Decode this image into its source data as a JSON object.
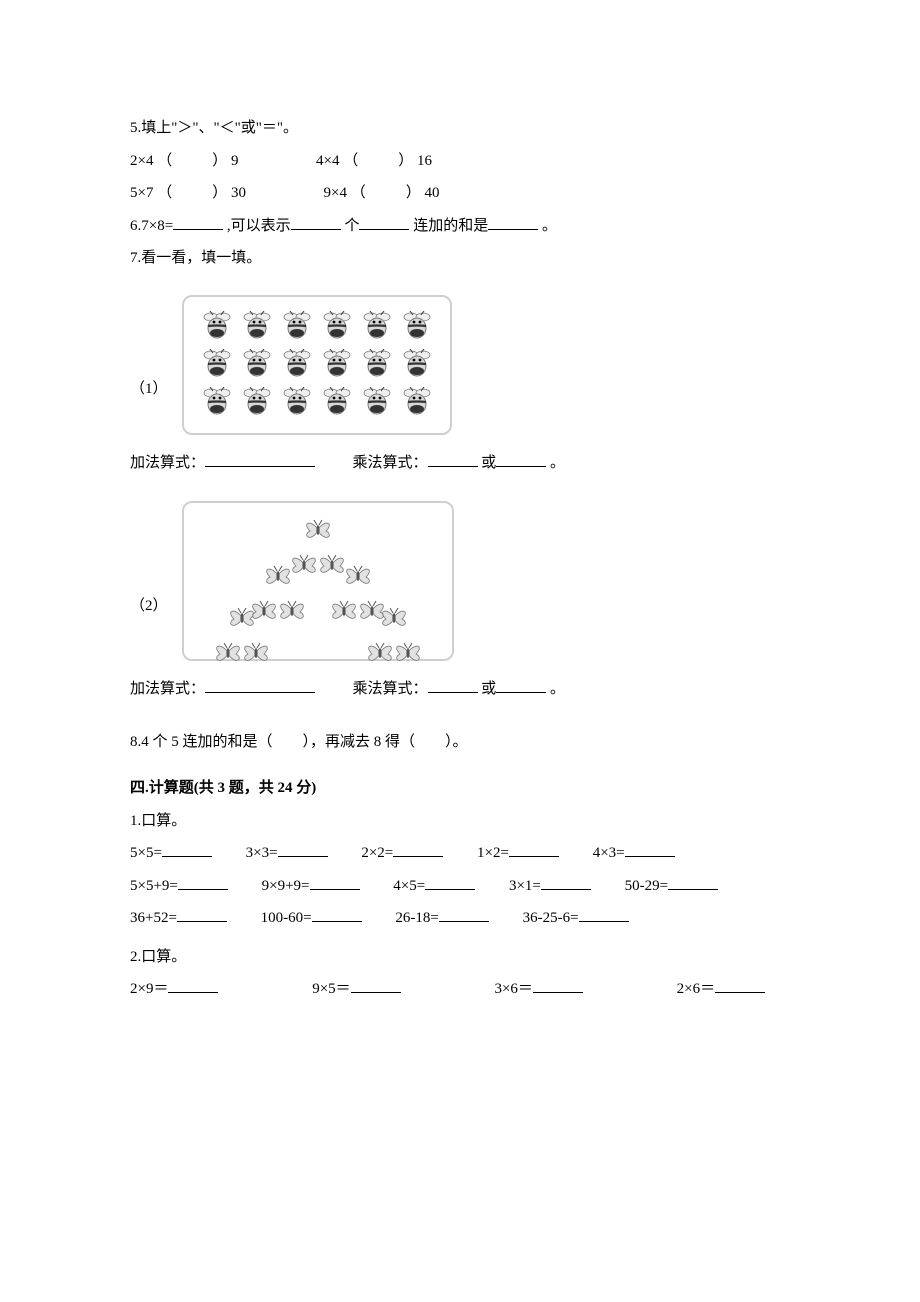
{
  "q5": {
    "prompt": "5.填上\"＞\"、\"＜\"或\"＝\"。",
    "row1a": "2×4",
    "row1a_rhs": "9",
    "row1b": "4×4",
    "row1b_rhs": "16",
    "row2a": "5×7",
    "row2a_rhs": "30",
    "row2b": "9×4",
    "row2b_rhs": "40"
  },
  "q6": {
    "text_a": "6.7×8=",
    "text_b": ",可以表示",
    "text_c": "个",
    "text_d": "连加的和是",
    "text_e": "。"
  },
  "q7": {
    "prompt": "7.看一看，填一填。",
    "label1": "（1）",
    "label2": "（2）",
    "add_label": "加法算式：",
    "mul_label": "乘法算式：",
    "or": "或",
    "dot": "。",
    "bee_rows": 3,
    "bee_cols": 6
  },
  "q8": {
    "text": "8.4 个 5 连加的和是（　　），再减去 8 得（　　）。"
  },
  "sec4": {
    "head": "四.计算题(共 3 题，共 24 分)",
    "q1": "1.口算。",
    "r1": [
      "5×5=",
      "3×3=",
      "2×2=",
      "1×2=",
      "4×3="
    ],
    "r2": [
      "5×5+9=",
      "9×9+9=",
      "4×5=",
      "3×1=",
      "50-29="
    ],
    "r3": [
      "36+52=",
      "100-60=",
      "26-18=",
      "36-25-6="
    ],
    "q2": "2.口算。",
    "r4": [
      "2×9＝",
      "9×5＝",
      "3×6＝",
      "2×6＝"
    ]
  },
  "icons": {
    "bee_colors": {
      "body": "#d7d7d7",
      "stripe": "#333333",
      "wing": "#efefef",
      "outline": "#777777"
    },
    "bfly_colors": {
      "wing": "#e2e2e2",
      "outline": "#777777",
      "body": "#555555"
    }
  }
}
